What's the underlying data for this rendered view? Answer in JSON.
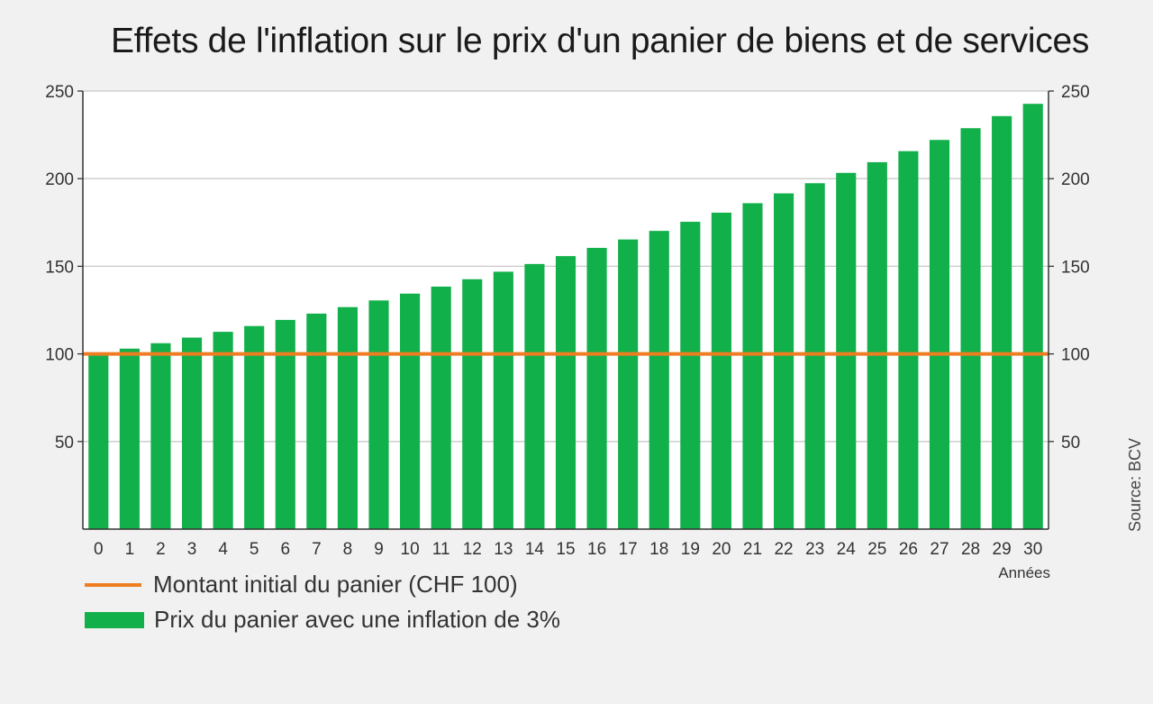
{
  "chart_data": {
    "type": "bar",
    "title": "Effets de l'inflation sur le prix d'un panier de biens et de services",
    "categories": [
      "0",
      "1",
      "2",
      "3",
      "4",
      "5",
      "6",
      "7",
      "8",
      "9",
      "10",
      "11",
      "12",
      "13",
      "14",
      "15",
      "16",
      "17",
      "18",
      "19",
      "20",
      "21",
      "22",
      "23",
      "24",
      "25",
      "26",
      "27",
      "28",
      "29",
      "30"
    ],
    "series": [
      {
        "name": "Prix du panier avec une inflation de 3%",
        "type": "bar",
        "color": "#12b04b",
        "values": [
          100,
          103,
          106.1,
          109.3,
          112.6,
          115.9,
          119.4,
          123,
          126.7,
          130.5,
          134.4,
          138.4,
          142.6,
          146.9,
          151.3,
          155.8,
          160.5,
          165.3,
          170.2,
          175.4,
          180.6,
          186,
          191.6,
          197.4,
          203.3,
          209.4,
          215.7,
          222.1,
          228.8,
          235.7,
          242.7
        ]
      },
      {
        "name": "Montant initial du panier (CHF 100)",
        "type": "line",
        "color": "#ef7d22",
        "values": [
          100,
          100,
          100,
          100,
          100,
          100,
          100,
          100,
          100,
          100,
          100,
          100,
          100,
          100,
          100,
          100,
          100,
          100,
          100,
          100,
          100,
          100,
          100,
          100,
          100,
          100,
          100,
          100,
          100,
          100,
          100
        ]
      }
    ],
    "xlabel": "Années",
    "ylim": [
      0,
      250
    ],
    "yticks": [
      50,
      100,
      150,
      200,
      250
    ],
    "y_axis_sides": "both",
    "grid": true,
    "legend": "bottom-left",
    "source": "Source: BCV"
  }
}
